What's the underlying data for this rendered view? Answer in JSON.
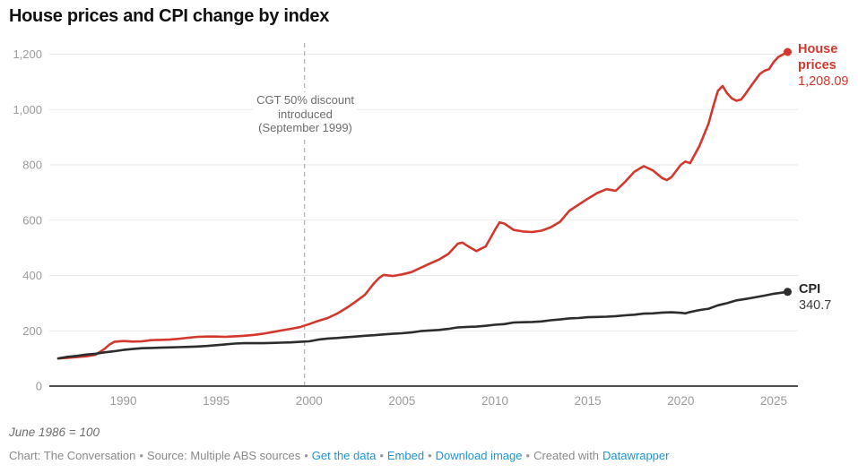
{
  "title": "House prices and CPI change by index",
  "note": "June 1986 = 100",
  "footer": {
    "credit": "Chart: The Conversation",
    "source": "Source: Multiple ABS sources",
    "links": {
      "get_data": "Get the data",
      "embed": "Embed",
      "download": "Download image"
    },
    "created_prefix": "Created with",
    "created_link": "Datawrapper",
    "separator": "•"
  },
  "colors": {
    "house": "#d3382e",
    "cpi": "#2d2d2d",
    "grid": "#e9e9e9",
    "baseline": "#161616",
    "axis_text": "#9b9b9b",
    "annotation_line": "#b5b5b5",
    "link_blue": "#2096d3"
  },
  "chart_data": {
    "type": "line",
    "title": "House prices and CPI change by index",
    "xlabel": "",
    "ylabel": "",
    "ylim": [
      0,
      1200
    ],
    "x_domain": [
      1986.5,
      2025.75
    ],
    "grid": true,
    "legend_position": "end-of-line-labels",
    "x_ticks": [
      1990,
      1995,
      2000,
      2005,
      2010,
      2015,
      2020,
      2025
    ],
    "y_ticks": [
      {
        "value": 0,
        "label": "0"
      },
      {
        "value": 200,
        "label": "200"
      },
      {
        "value": 400,
        "label": "400"
      },
      {
        "value": 600,
        "label": "600"
      },
      {
        "value": 800,
        "label": "800"
      },
      {
        "value": 1000,
        "label": "1,000"
      },
      {
        "value": 1200,
        "label": "1,200"
      }
    ],
    "annotation": {
      "text": "CGT 50% discount introduced (September 1999)",
      "year": 1999.75
    },
    "series": [
      {
        "id": "house-prices",
        "name": "House prices",
        "end_value": "1,208.09",
        "color": "#d3382e",
        "points": [
          [
            1986.5,
            100
          ],
          [
            1987,
            102
          ],
          [
            1987.5,
            105
          ],
          [
            1988,
            108
          ],
          [
            1988.5,
            113
          ],
          [
            1989,
            135
          ],
          [
            1989.25,
            150
          ],
          [
            1989.5,
            160
          ],
          [
            1990,
            163
          ],
          [
            1990.5,
            161
          ],
          [
            1991,
            162
          ],
          [
            1991.5,
            166
          ],
          [
            1992,
            167
          ],
          [
            1992.5,
            168
          ],
          [
            1993,
            171
          ],
          [
            1993.5,
            175
          ],
          [
            1994,
            178
          ],
          [
            1994.5,
            179
          ],
          [
            1995,
            179
          ],
          [
            1995.5,
            178
          ],
          [
            1996,
            180
          ],
          [
            1996.5,
            182
          ],
          [
            1997,
            185
          ],
          [
            1997.5,
            189
          ],
          [
            1998,
            195
          ],
          [
            1998.5,
            201
          ],
          [
            1999,
            207
          ],
          [
            1999.5,
            213
          ],
          [
            2000,
            224
          ],
          [
            2000.5,
            236
          ],
          [
            2001,
            246
          ],
          [
            2001.5,
            262
          ],
          [
            2002,
            282
          ],
          [
            2002.5,
            305
          ],
          [
            2003,
            330
          ],
          [
            2003.5,
            372
          ],
          [
            2003.75,
            390
          ],
          [
            2004,
            402
          ],
          [
            2004.5,
            398
          ],
          [
            2005,
            404
          ],
          [
            2005.5,
            412
          ],
          [
            2006,
            428
          ],
          [
            2006.5,
            443
          ],
          [
            2007,
            458
          ],
          [
            2007.5,
            478
          ],
          [
            2008,
            515
          ],
          [
            2008.25,
            519
          ],
          [
            2008.5,
            508
          ],
          [
            2009,
            488
          ],
          [
            2009.5,
            505
          ],
          [
            2010,
            565
          ],
          [
            2010.25,
            592
          ],
          [
            2010.5,
            588
          ],
          [
            2011,
            565
          ],
          [
            2011.5,
            559
          ],
          [
            2012,
            557
          ],
          [
            2012.5,
            562
          ],
          [
            2013,
            574
          ],
          [
            2013.5,
            594
          ],
          [
            2014,
            634
          ],
          [
            2014.5,
            656
          ],
          [
            2015,
            678
          ],
          [
            2015.5,
            698
          ],
          [
            2016,
            712
          ],
          [
            2016.5,
            706
          ],
          [
            2017,
            738
          ],
          [
            2017.5,
            775
          ],
          [
            2018,
            795
          ],
          [
            2018.5,
            780
          ],
          [
            2019,
            752
          ],
          [
            2019.25,
            745
          ],
          [
            2019.5,
            756
          ],
          [
            2020,
            800
          ],
          [
            2020.25,
            812
          ],
          [
            2020.5,
            806
          ],
          [
            2021,
            868
          ],
          [
            2021.5,
            950
          ],
          [
            2021.75,
            1012
          ],
          [
            2022,
            1068
          ],
          [
            2022.25,
            1085
          ],
          [
            2022.5,
            1058
          ],
          [
            2022.75,
            1040
          ],
          [
            2023,
            1032
          ],
          [
            2023.25,
            1036
          ],
          [
            2023.5,
            1058
          ],
          [
            2023.75,
            1082
          ],
          [
            2024,
            1105
          ],
          [
            2024.25,
            1128
          ],
          [
            2024.5,
            1140
          ],
          [
            2024.75,
            1146
          ],
          [
            2025,
            1172
          ],
          [
            2025.25,
            1190
          ],
          [
            2025.75,
            1208.09
          ]
        ]
      },
      {
        "id": "cpi",
        "name": "CPI",
        "end_value": "340.7",
        "color": "#2d2d2d",
        "points": [
          [
            1986.5,
            100
          ],
          [
            1987,
            106
          ],
          [
            1987.5,
            109
          ],
          [
            1988,
            114
          ],
          [
            1988.5,
            117
          ],
          [
            1989,
            122
          ],
          [
            1989.5,
            126
          ],
          [
            1990,
            131
          ],
          [
            1990.5,
            134
          ],
          [
            1991,
            137
          ],
          [
            1991.5,
            138
          ],
          [
            1992,
            139
          ],
          [
            1992.5,
            140
          ],
          [
            1993,
            141
          ],
          [
            1993.5,
            142
          ],
          [
            1994,
            143
          ],
          [
            1994.5,
            145
          ],
          [
            1995,
            148
          ],
          [
            1995.5,
            151
          ],
          [
            1996,
            154
          ],
          [
            1996.5,
            155
          ],
          [
            1997,
            155
          ],
          [
            1997.5,
            155
          ],
          [
            1998,
            156
          ],
          [
            1998.5,
            157
          ],
          [
            1999,
            158
          ],
          [
            1999.5,
            160
          ],
          [
            2000,
            162
          ],
          [
            2000.5,
            168
          ],
          [
            2001,
            172
          ],
          [
            2001.5,
            174
          ],
          [
            2002,
            177
          ],
          [
            2002.5,
            179
          ],
          [
            2003,
            182
          ],
          [
            2003.5,
            184
          ],
          [
            2004,
            187
          ],
          [
            2004.5,
            189
          ],
          [
            2005,
            191
          ],
          [
            2005.5,
            194
          ],
          [
            2006,
            199
          ],
          [
            2006.5,
            201
          ],
          [
            2007,
            203
          ],
          [
            2007.5,
            207
          ],
          [
            2008,
            212
          ],
          [
            2008.5,
            214
          ],
          [
            2009,
            215
          ],
          [
            2009.5,
            218
          ],
          [
            2010,
            222
          ],
          [
            2010.5,
            224
          ],
          [
            2011,
            230
          ],
          [
            2011.5,
            231
          ],
          [
            2012,
            232
          ],
          [
            2012.5,
            234
          ],
          [
            2013,
            238
          ],
          [
            2013.5,
            241
          ],
          [
            2014,
            245
          ],
          [
            2014.5,
            246
          ],
          [
            2015,
            249
          ],
          [
            2015.5,
            250
          ],
          [
            2016,
            251
          ],
          [
            2016.5,
            253
          ],
          [
            2017,
            256
          ],
          [
            2017.5,
            258
          ],
          [
            2018,
            262
          ],
          [
            2018.5,
            263
          ],
          [
            2019,
            266
          ],
          [
            2019.5,
            267
          ],
          [
            2020,
            265
          ],
          [
            2020.25,
            263
          ],
          [
            2020.5,
            268
          ],
          [
            2021,
            275
          ],
          [
            2021.5,
            280
          ],
          [
            2022,
            292
          ],
          [
            2022.5,
            300
          ],
          [
            2023,
            310
          ],
          [
            2023.5,
            315
          ],
          [
            2024,
            321
          ],
          [
            2024.5,
            327
          ],
          [
            2025,
            334
          ],
          [
            2025.75,
            340.7
          ]
        ]
      }
    ]
  }
}
